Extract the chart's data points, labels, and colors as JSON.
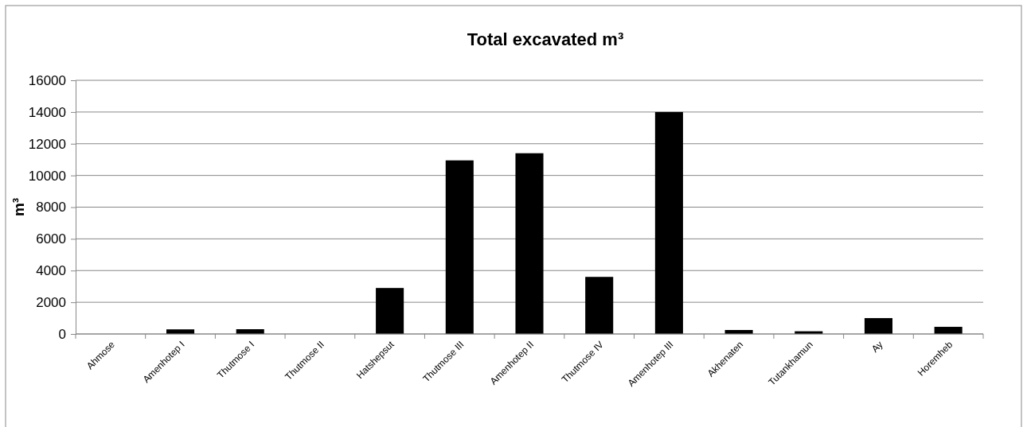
{
  "chart_data": {
    "type": "bar",
    "title": "Total excavated m³",
    "ylabel": "m³",
    "categories": [
      "Ahmose",
      "Amenhotep I",
      "Thutmose I",
      "Thutmose II",
      "Hatshepsut",
      "Thutmose III",
      "Amenhotep II",
      "Thutmose IV",
      "Amenhotep III",
      "Akhenaten",
      "Tutankhamun",
      "Ay",
      "Horemheb"
    ],
    "values": [
      0,
      290,
      300,
      0,
      2900,
      10950,
      11400,
      3600,
      14000,
      250,
      170,
      1000,
      450
    ],
    "color": "#000000",
    "ylim": [
      0,
      16000
    ],
    "yticks": [
      0,
      2000,
      4000,
      6000,
      8000,
      10000,
      12000,
      14000,
      16000
    ],
    "grid": "y"
  }
}
